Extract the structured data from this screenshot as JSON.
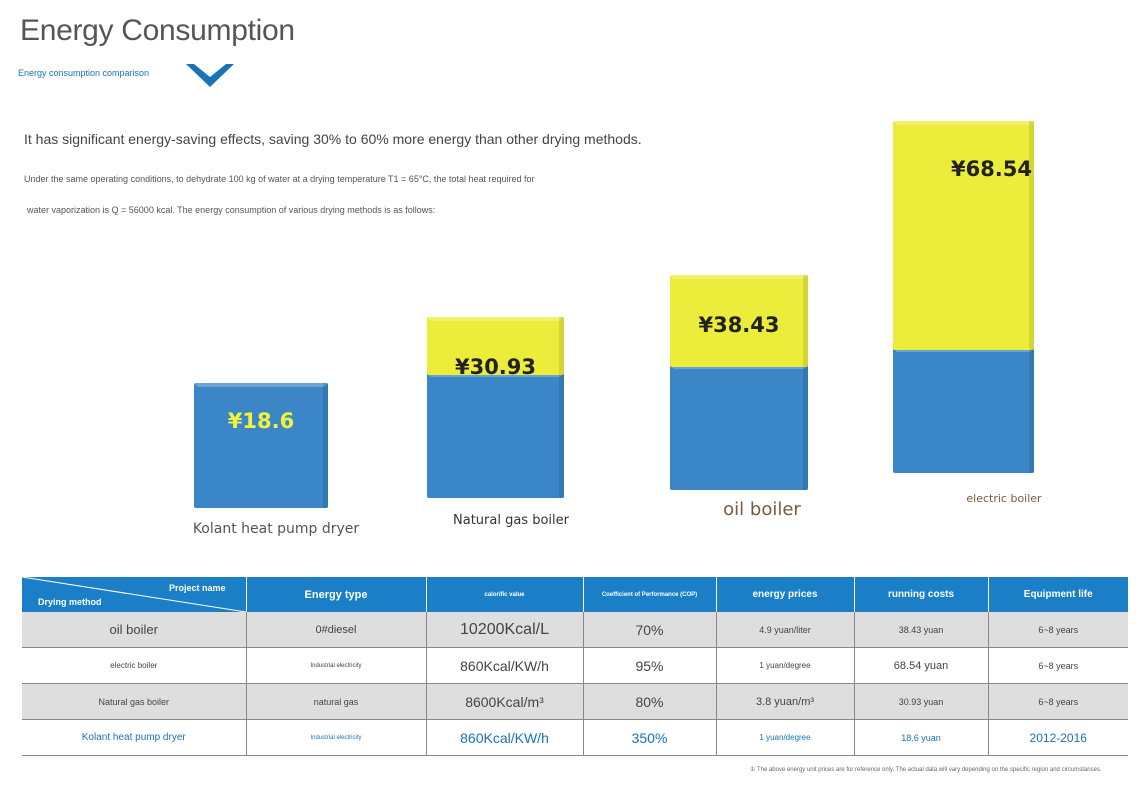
{
  "header": {
    "title": "Energy Consumption",
    "subtitle": "Energy consumption comparison",
    "lead": "It has significant energy-saving effects, saving 30% to 60% more energy than other drying methods.",
    "desc_line1": "Under the same operating conditions, to dehydrate 100 kg of water at a drying temperature T1 = 65°C, the total heat required for",
    "desc_line2": "water vaporization is Q = 56000 kcal. The energy consumption of various drying methods is as follows:"
  },
  "colors": {
    "accent": "#1a7fc6",
    "cube_blue": "#3a86c6",
    "cube_yellow": "#ecec3a",
    "label_yellow": "#f2f23c"
  },
  "chart_data": {
    "type": "bar",
    "title": "Energy consumption comparison",
    "unit": "¥",
    "categories": [
      "Kolant heat pump dryer",
      "Natural gas boiler",
      "oil boiler",
      "electric boiler"
    ],
    "values": [
      18.6,
      30.93,
      38.43,
      68.54
    ],
    "value_labels": [
      "¥18.6",
      "¥30.93",
      "¥38.43",
      "¥68.54"
    ],
    "ylim": [
      0,
      70
    ],
    "grid": false
  },
  "table": {
    "corner_top": "Project name",
    "corner_bottom": "Drying method",
    "headers": [
      "Energy type",
      "calorific value",
      "Coefficient of Performance (COP)",
      "energy prices",
      "running costs",
      "Equipment life"
    ],
    "rows": [
      [
        "oil boiler",
        "0#diesel",
        "10200Kcal/L",
        "70%",
        "4.9 yuan/liter",
        "38.43 yuan",
        "6~8 years"
      ],
      [
        "electric boiler",
        "Industrial electricity",
        "860Kcal/KW/h",
        "95%",
        "1 yuan/degree",
        "68.54 yuan",
        "6~8 years"
      ],
      [
        "Natural gas boiler",
        "natural gas",
        "8600Kcal/m³",
        "80%",
        "3.8 yuan/m³",
        "30.93 yuan",
        "6~8 years"
      ],
      [
        "Kolant heat pump dryer",
        "Industrial electricity",
        "860Kcal/KW/h",
        "350%",
        "1 yuan/degree",
        "18.6 yuan",
        "2012-2016"
      ]
    ]
  },
  "footnote": "① The above energy unit prices are for reference only. The actual data will vary depending on the specific region and circumstances."
}
